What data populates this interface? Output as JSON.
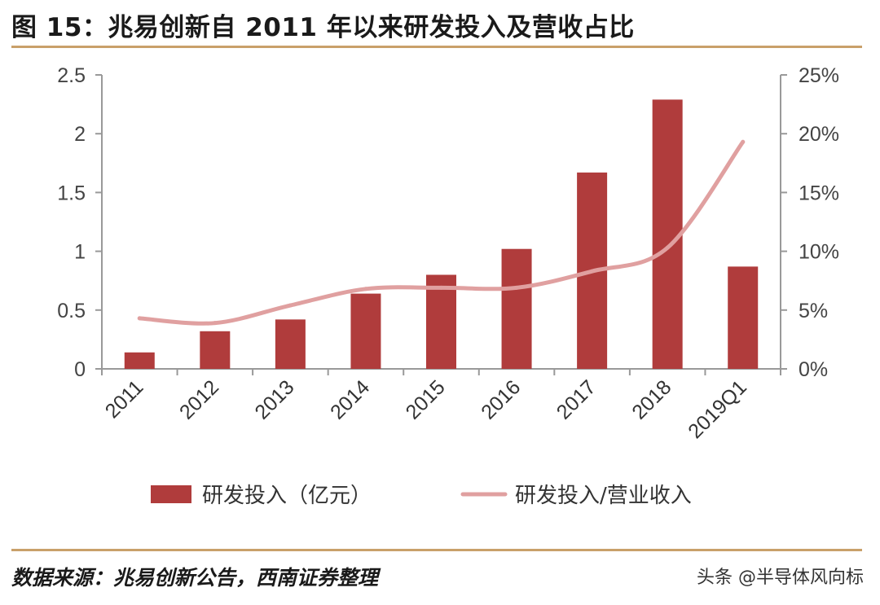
{
  "header": {
    "title": "图 15：兆易创新自 2011 年以来研发投入及营收占比"
  },
  "footer": {
    "source": "数据来源：兆易创新公告，西南证券整理",
    "watermark": "头条 @半导体风向标"
  },
  "colors": {
    "bar": "#b03c3c",
    "line": "#e0a0a0",
    "rule": "#c9a06a",
    "axis": "#999999"
  },
  "chart_data": {
    "type": "bar+line",
    "title": "兆易创新自 2011 年以来研发投入及营收占比",
    "categories": [
      "2011",
      "2012",
      "2013",
      "2014",
      "2015",
      "2016",
      "2017",
      "2018",
      "2019Q1"
    ],
    "series": [
      {
        "name": "研发投入（亿元）",
        "type": "bar",
        "axis": "left",
        "values": [
          0.14,
          0.32,
          0.42,
          0.64,
          0.8,
          1.02,
          1.67,
          2.29,
          0.87
        ]
      },
      {
        "name": "研发投入/营业收入",
        "type": "line",
        "axis": "right",
        "values": [
          0.043,
          0.039,
          0.054,
          0.068,
          0.069,
          0.069,
          0.083,
          0.103,
          0.193
        ]
      }
    ],
    "y_left": {
      "min": 0,
      "max": 2.5,
      "ticks": [
        "0",
        "0.5",
        "1",
        "1.5",
        "2",
        "2.5"
      ]
    },
    "y_right": {
      "min": 0,
      "max": 0.25,
      "ticks": [
        "0%",
        "5%",
        "10%",
        "15%",
        "20%",
        "25%"
      ]
    },
    "legend": {
      "placement": "bottom",
      "bar_label": "研发投入（亿元）",
      "line_label": "研发投入/营业收入"
    }
  }
}
